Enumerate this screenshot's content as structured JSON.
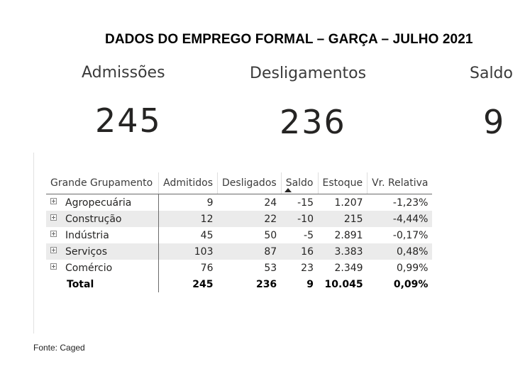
{
  "title": "DADOS DO EMPREGO FORMAL – GARÇA – JULHO 2021",
  "kpis": {
    "admissoes": {
      "label": "Admissões",
      "value": "245"
    },
    "desligamentos": {
      "label": "Desligamentos",
      "value": "236"
    },
    "saldo": {
      "label": "Saldo",
      "value": "9"
    }
  },
  "table": {
    "columns": [
      "Grande Grupamento",
      "Admitidos",
      "Desligados",
      "Saldo",
      "Estoque",
      "Vr. Relativa"
    ],
    "sort_icon": "sort-ascending-icon",
    "rows": [
      {
        "grupo": "Agropecuária",
        "admitidos": "9",
        "desligados": "24",
        "saldo": "-15",
        "estoque": "1.207",
        "vr": "-1,23%"
      },
      {
        "grupo": "Construção",
        "admitidos": "12",
        "desligados": "22",
        "saldo": "-10",
        "estoque": "215",
        "vr": "-4,44%"
      },
      {
        "grupo": "Indústria",
        "admitidos": "45",
        "desligados": "50",
        "saldo": "-5",
        "estoque": "2.891",
        "vr": "-0,17%"
      },
      {
        "grupo": "Serviços",
        "admitidos": "103",
        "desligados": "87",
        "saldo": "16",
        "estoque": "3.383",
        "vr": "0,48%"
      },
      {
        "grupo": "Comércio",
        "admitidos": "76",
        "desligados": "53",
        "saldo": "23",
        "estoque": "2.349",
        "vr": "0,99%"
      }
    ],
    "total": {
      "label": "Total",
      "admitidos": "245",
      "desligados": "236",
      "saldo": "9",
      "estoque": "10.045",
      "vr": "0,09%"
    }
  },
  "source": "Fonte: Caged"
}
